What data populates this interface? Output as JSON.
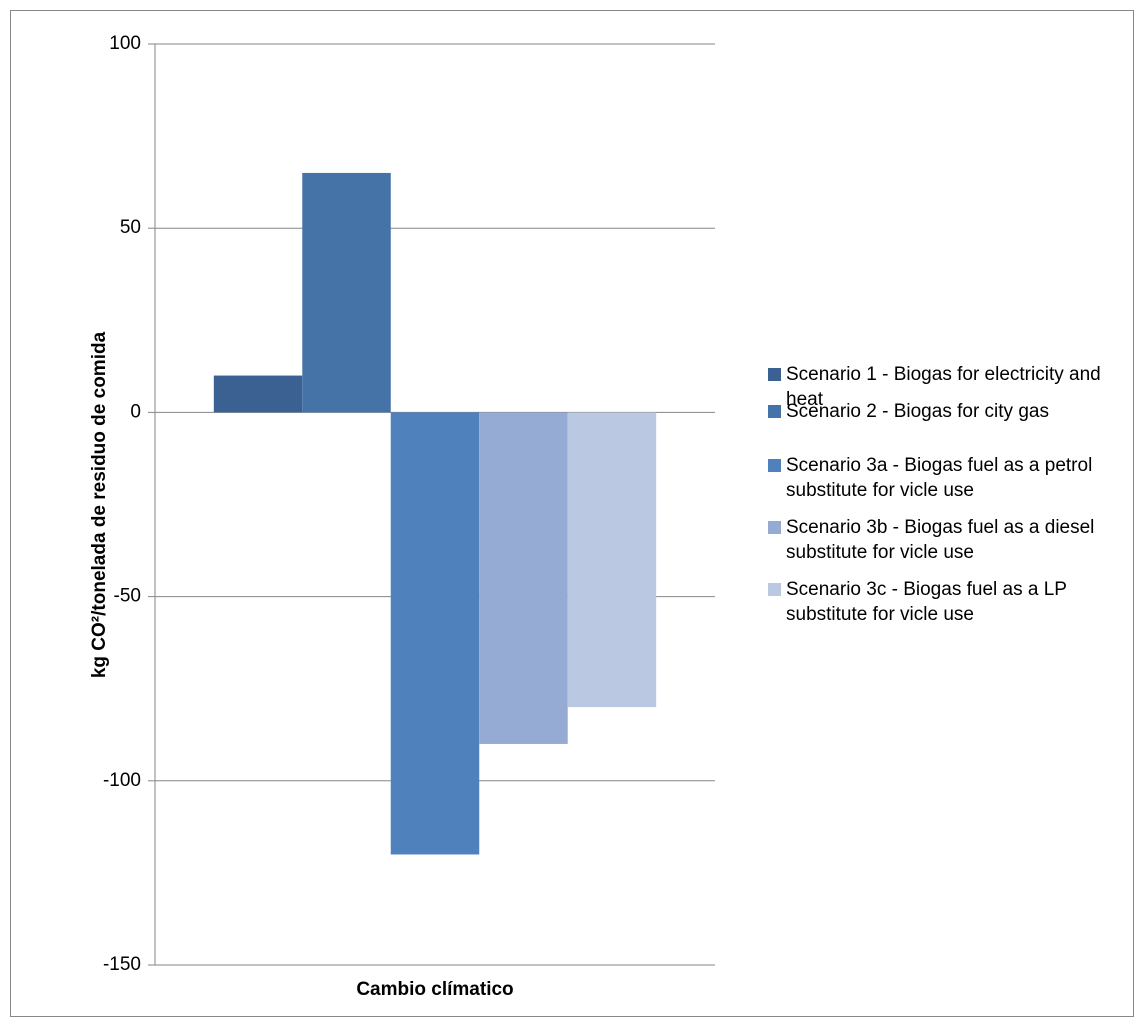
{
  "chart_data": {
    "type": "bar",
    "categories": [
      "Cambio clímatico"
    ],
    "x_label": "Cambio clímatico",
    "y_label": "kg CO²/tonelada de residuo de comida",
    "series": [
      {
        "name": "Scenario 1 - Biogas for electricity and heat",
        "color": "#3b6192",
        "values": [
          10
        ]
      },
      {
        "name": "Scenario 2 - Biogas for city gas",
        "color": "#4573a8",
        "values": [
          65
        ]
      },
      {
        "name": "Scenario 3a - Biogas fuel as a petrol substitute for vicle use",
        "color": "#4f81bd",
        "values": [
          -120
        ]
      },
      {
        "name": "Scenario 3b - Biogas fuel as a diesel substitute for vicle use",
        "color": "#95abd3",
        "values": [
          -90
        ]
      },
      {
        "name": "Scenario 3c - Biogas fuel as a LP substitute for vicle use",
        "color": "#bac8e2",
        "values": [
          -80
        ]
      }
    ],
    "ylim": [
      -150,
      100
    ],
    "yticks": [
      -150,
      -100,
      -50,
      0,
      50,
      100
    ],
    "grid": true,
    "legend": "right"
  }
}
